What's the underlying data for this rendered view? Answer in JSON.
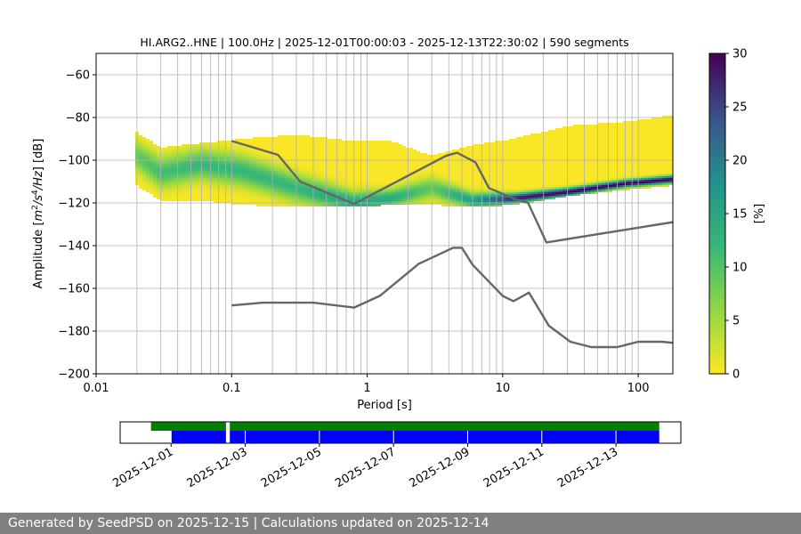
{
  "chart_data": [
    {
      "type": "heatmap",
      "title": "HI.ARG2..HNE | 100.0Hz | 2025-12-01T00:00:03 - 2025-12-13T22:30:02 | 590 segments",
      "xlabel": "Period [s]",
      "ylabel": "Amplitude [m²/s⁴/Hz] [dB]",
      "ylabel_parts": {
        "pre": "Amplitude [",
        "m": "m",
        "two": "2",
        "slash_s": "/s",
        "four": "4",
        "hz": "/Hz",
        "post": "] [dB]"
      },
      "x_scale": "log",
      "xlim": [
        0.01,
        180
      ],
      "ylim": [
        -200,
        -50
      ],
      "xticks": [
        {
          "value": 0.01,
          "label": "0.01"
        },
        {
          "value": 0.1,
          "label": "0.1"
        },
        {
          "value": 1,
          "label": "1"
        },
        {
          "value": 10,
          "label": "10"
        },
        {
          "value": 100,
          "label": "100"
        }
      ],
      "yticks": [
        {
          "value": -60,
          "label": "−60"
        },
        {
          "value": -80,
          "label": "−80"
        },
        {
          "value": -100,
          "label": "−100"
        },
        {
          "value": -120,
          "label": "−120"
        },
        {
          "value": -140,
          "label": "−140"
        },
        {
          "value": -160,
          "label": "−160"
        },
        {
          "value": -180,
          "label": "−180"
        },
        {
          "value": -200,
          "label": "−200"
        }
      ],
      "grid": true,
      "colormap": "viridis_r",
      "colorbar": {
        "label": "[%]",
        "range": [
          0,
          30
        ],
        "ticks": [
          {
            "value": 0,
            "label": "0"
          },
          {
            "value": 5,
            "label": "5"
          },
          {
            "value": 10,
            "label": "10"
          },
          {
            "value": 15,
            "label": "15"
          },
          {
            "value": 20,
            "label": "20"
          },
          {
            "value": 25,
            "label": "25"
          },
          {
            "value": 30,
            "label": "30"
          }
        ]
      },
      "density_profile": [
        {
          "period": 0.02,
          "mode": -98,
          "spread": 5,
          "peak": 9,
          "upper": -87,
          "lower": -112
        },
        {
          "period": 0.03,
          "mode": -106,
          "spread": 5,
          "peak": 11,
          "upper": -94,
          "lower": -119
        },
        {
          "period": 0.06,
          "mode": -102,
          "spread": 5,
          "peak": 12,
          "upper": -92,
          "lower": -119
        },
        {
          "period": 0.12,
          "mode": -105,
          "spread": 5,
          "peak": 12,
          "upper": -90,
          "lower": -121
        },
        {
          "period": 0.3,
          "mode": -113,
          "spread": 4.5,
          "peak": 12,
          "upper": -88,
          "lower": -122
        },
        {
          "period": 0.8,
          "mode": -120,
          "spread": 3.5,
          "peak": 15,
          "upper": -91,
          "lower": -122
        },
        {
          "period": 1.5,
          "mode": -118,
          "spread": 3,
          "peak": 14,
          "upper": -91,
          "lower": -121
        },
        {
          "period": 3,
          "mode": -113,
          "spread": 3.5,
          "peak": 9,
          "upper": -98,
          "lower": -121
        },
        {
          "period": 6,
          "mode": -119,
          "spread": 2.5,
          "peak": 16,
          "upper": -93,
          "lower": -122
        },
        {
          "period": 12,
          "mode": -118,
          "spread": 1.6,
          "peak": 28,
          "upper": -90,
          "lower": -121
        },
        {
          "period": 30,
          "mode": -115,
          "spread": 1.3,
          "peak": 30,
          "upper": -84,
          "lower": -117
        },
        {
          "period": 80,
          "mode": -111,
          "spread": 1.2,
          "peak": 30,
          "upper": -82,
          "lower": -114
        },
        {
          "period": 180,
          "mode": -109,
          "spread": 1.2,
          "peak": 30,
          "upper": -79,
          "lower": -112
        }
      ],
      "series": [
        {
          "role": "new_high_noise_model",
          "color": "#666666",
          "points": [
            [
              0.1,
              -91
            ],
            [
              0.22,
              -97.5
            ],
            [
              0.32,
              -110
            ],
            [
              0.8,
              -120.5
            ],
            [
              3.8,
              -98
            ],
            [
              4.6,
              -96.5
            ],
            [
              6.3,
              -101
            ],
            [
              7.9,
              -113
            ],
            [
              12,
              -118
            ],
            [
              15.4,
              -120
            ],
            [
              21,
              -138.5
            ],
            [
              180,
              -129
            ]
          ]
        },
        {
          "role": "new_low_noise_model",
          "color": "#666666",
          "points": [
            [
              0.1,
              -168
            ],
            [
              0.17,
              -166.7
            ],
            [
              0.4,
              -166.7
            ],
            [
              0.8,
              -169
            ],
            [
              1.24,
              -163.5
            ],
            [
              2.4,
              -148.5
            ],
            [
              4.3,
              -141
            ],
            [
              5.0,
              -141
            ],
            [
              6,
              -149
            ],
            [
              10,
              -163.5
            ],
            [
              12,
              -166
            ],
            [
              15.6,
              -162
            ],
            [
              21.9,
              -177.5
            ],
            [
              31.6,
              -185
            ],
            [
              45,
              -187.5
            ],
            [
              70,
              -187.5
            ],
            [
              100,
              -185
            ],
            [
              150,
              -185
            ],
            [
              180,
              -185.5
            ]
          ]
        }
      ]
    },
    {
      "type": "timeline",
      "ticks": [
        {
          "value": "2025-12-01",
          "label": "2025-12-01"
        },
        {
          "value": "2025-12-03",
          "label": "2025-12-03"
        },
        {
          "value": "2025-12-05",
          "label": "2025-12-05"
        },
        {
          "value": "2025-12-07",
          "label": "2025-12-07"
        },
        {
          "value": "2025-12-09",
          "label": "2025-12-09"
        },
        {
          "value": "2025-12-11",
          "label": "2025-12-11"
        },
        {
          "value": "2025-12-13",
          "label": "2025-12-13"
        }
      ],
      "series": [
        {
          "role": "data_availability",
          "color": "#008000",
          "intervals": [
            [
              "2025-11-30T11:00",
              "2025-12-02T11:30"
            ],
            [
              "2025-12-02T14:00",
              "2025-12-14T04:00"
            ]
          ]
        },
        {
          "role": "psd_segments",
          "color": "#0000ff",
          "intervals": [
            [
              "2025-12-01T00:00",
              "2025-12-02T11:30"
            ],
            [
              "2025-12-02T14:00",
              "2025-12-14T04:00"
            ]
          ]
        }
      ]
    }
  ],
  "footer": {
    "text": "Generated by SeedPSD on 2025-12-15 | Calculations updated on 2025-12-14"
  }
}
